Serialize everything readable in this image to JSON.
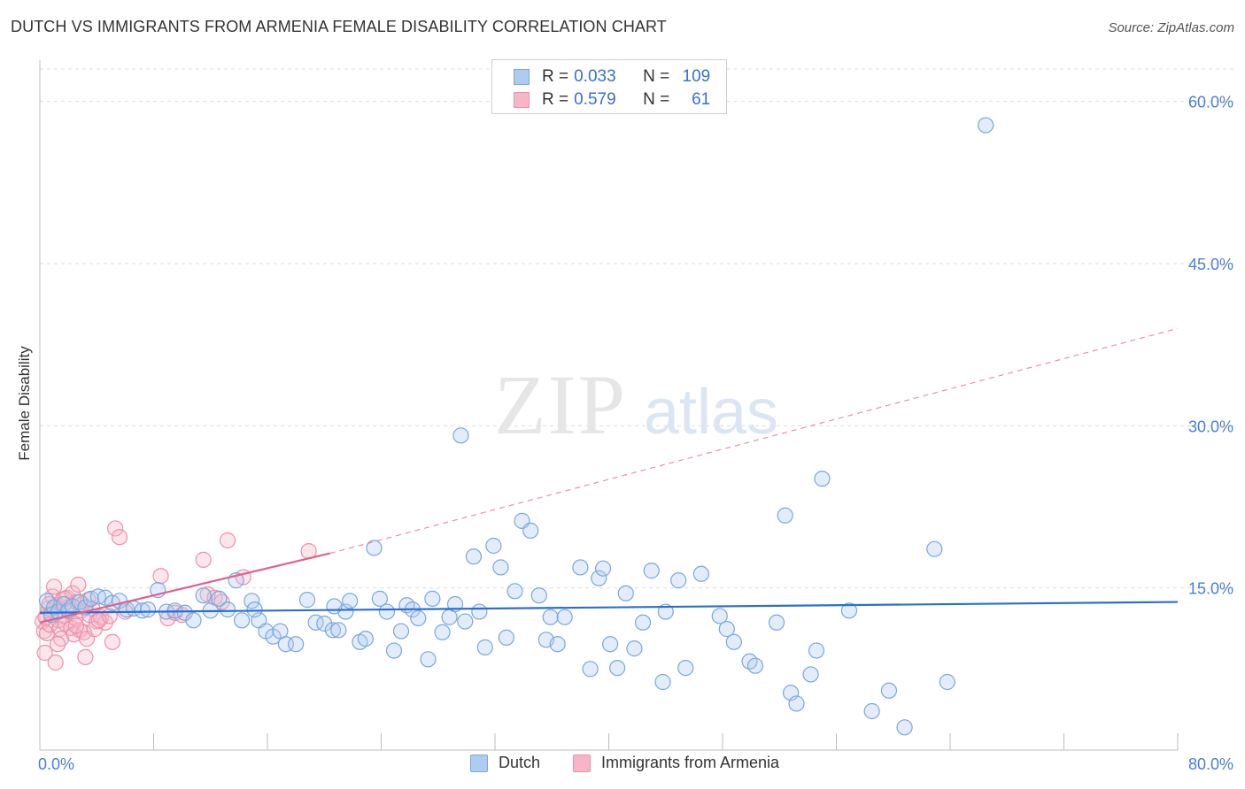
{
  "title": "DUTCH VS IMMIGRANTS FROM ARMENIA FEMALE DISABILITY CORRELATION CHART",
  "source": "Source: ZipAtlas.com",
  "watermark": {
    "zip": "ZIP",
    "atlas": "atlas"
  },
  "colors": {
    "dutch_fill": "#aecbf0",
    "dutch_stroke": "#7aa6dd",
    "dutch_line": "#2a6fd0",
    "armenia_fill": "#f7b6c8",
    "armenia_stroke": "#ec8fab",
    "armenia_line": "#e0608c",
    "axis_text": "#4a7fd4",
    "grid": "#dddddd"
  },
  "legend": {
    "rows": [
      {
        "r_label": "R = ",
        "r_value": "0.033",
        "n_label": "N = ",
        "n_value": "109"
      },
      {
        "r_label": "R = ",
        "r_value": "0.579",
        "n_label": "N = ",
        "n_value": "61"
      }
    ]
  },
  "chart_data": {
    "type": "scatter",
    "title": "DUTCH VS IMMIGRANTS FROM ARMENIA FEMALE DISABILITY CORRELATION CHART",
    "xlabel": "",
    "ylabel": "Female Disability",
    "xlim": [
      0,
      80
    ],
    "ylim": [
      0,
      63
    ],
    "x_tick_labels": [
      "0.0%",
      "80.0%"
    ],
    "y_ticks": [
      15,
      30,
      45,
      60
    ],
    "y_tick_labels": [
      "15.0%",
      "30.0%",
      "45.0%",
      "60.0%"
    ],
    "grid": true,
    "legend_position": "top-center",
    "series": [
      {
        "name": "Dutch",
        "r": 0.033,
        "n": 109,
        "trend": {
          "x0": 0,
          "y0": 12.7,
          "x1": 80,
          "y1": 13.7
        },
        "points": [
          [
            0.5,
            13.8
          ],
          [
            0.8,
            12.5
          ],
          [
            1.0,
            13.2
          ],
          [
            1.3,
            12.8
          ],
          [
            1.7,
            13.5
          ],
          [
            2.0,
            12.9
          ],
          [
            2.3,
            13.3
          ],
          [
            2.8,
            13.7
          ],
          [
            3.2,
            13.2
          ],
          [
            3.6,
            14.0
          ],
          [
            4.1,
            14.2
          ],
          [
            4.6,
            14.1
          ],
          [
            5.1,
            13.6
          ],
          [
            5.6,
            13.8
          ],
          [
            6.1,
            13.0
          ],
          [
            6.6,
            13.1
          ],
          [
            7.2,
            12.9
          ],
          [
            7.6,
            13.0
          ],
          [
            8.3,
            14.8
          ],
          [
            8.9,
            12.8
          ],
          [
            9.5,
            12.9
          ],
          [
            10.2,
            12.7
          ],
          [
            10.8,
            12.0
          ],
          [
            11.5,
            14.3
          ],
          [
            12.0,
            12.9
          ],
          [
            12.6,
            14.0
          ],
          [
            13.2,
            13.0
          ],
          [
            13.8,
            15.7
          ],
          [
            14.2,
            12.0
          ],
          [
            14.9,
            13.8
          ],
          [
            15.4,
            12.0
          ],
          [
            15.9,
            11.0
          ],
          [
            16.4,
            10.5
          ],
          [
            16.9,
            11.0
          ],
          [
            17.3,
            9.8
          ],
          [
            18.0,
            9.8
          ],
          [
            18.8,
            13.9
          ],
          [
            19.4,
            11.8
          ],
          [
            20.0,
            11.7
          ],
          [
            20.6,
            11.1
          ],
          [
            21.0,
            11.1
          ],
          [
            21.5,
            12.8
          ],
          [
            21.8,
            13.8
          ],
          [
            22.5,
            10.0
          ],
          [
            22.9,
            10.3
          ],
          [
            23.5,
            18.7
          ],
          [
            23.9,
            14.0
          ],
          [
            24.4,
            12.8
          ],
          [
            24.9,
            9.2
          ],
          [
            25.4,
            11.0
          ],
          [
            25.8,
            13.4
          ],
          [
            26.2,
            13.0
          ],
          [
            26.6,
            12.2
          ],
          [
            27.3,
            8.4
          ],
          [
            27.6,
            14.0
          ],
          [
            28.3,
            10.9
          ],
          [
            28.8,
            12.3
          ],
          [
            29.2,
            13.5
          ],
          [
            29.9,
            11.9
          ],
          [
            30.5,
            17.9
          ],
          [
            30.9,
            12.8
          ],
          [
            31.3,
            9.5
          ],
          [
            31.9,
            18.9
          ],
          [
            32.4,
            16.9
          ],
          [
            32.8,
            10.4
          ],
          [
            33.4,
            14.7
          ],
          [
            33.9,
            21.2
          ],
          [
            34.5,
            20.3
          ],
          [
            35.1,
            14.3
          ],
          [
            35.6,
            10.2
          ],
          [
            35.9,
            12.3
          ],
          [
            36.4,
            9.8
          ],
          [
            36.9,
            12.3
          ],
          [
            38.0,
            16.9
          ],
          [
            38.7,
            7.5
          ],
          [
            39.3,
            15.9
          ],
          [
            39.6,
            16.8
          ],
          [
            40.1,
            9.8
          ],
          [
            40.6,
            7.6
          ],
          [
            41.2,
            14.5
          ],
          [
            41.8,
            9.4
          ],
          [
            42.4,
            11.8
          ],
          [
            43.0,
            16.6
          ],
          [
            43.8,
            6.3
          ],
          [
            44.0,
            12.8
          ],
          [
            44.9,
            15.7
          ],
          [
            45.4,
            7.6
          ],
          [
            46.5,
            16.3
          ],
          [
            47.8,
            12.4
          ],
          [
            48.3,
            11.2
          ],
          [
            48.8,
            10.0
          ],
          [
            49.9,
            8.2
          ],
          [
            50.3,
            7.8
          ],
          [
            51.8,
            11.8
          ],
          [
            52.4,
            21.7
          ],
          [
            52.8,
            5.3
          ],
          [
            53.2,
            4.3
          ],
          [
            54.2,
            7.0
          ],
          [
            54.6,
            9.2
          ],
          [
            55.0,
            25.1
          ],
          [
            56.9,
            12.9
          ],
          [
            58.5,
            3.6
          ],
          [
            59.7,
            5.5
          ],
          [
            60.8,
            2.1
          ],
          [
            62.9,
            18.6
          ],
          [
            63.8,
            6.3
          ],
          [
            66.5,
            57.8
          ],
          [
            29.6,
            29.1
          ],
          [
            15.1,
            13.0
          ],
          [
            20.7,
            13.3
          ]
        ]
      },
      {
        "name": "Immigrants from Armenia",
        "r": 0.579,
        "n": 61,
        "trend": {
          "x0": 0,
          "y0": 11.8,
          "x1": 20.4,
          "y1": 18.2
        },
        "trend_extended": {
          "x0": 20.4,
          "y0": 18.2,
          "x1": 80,
          "y1": 39.0
        },
        "points": [
          [
            0.2,
            11.9
          ],
          [
            0.3,
            11.0
          ],
          [
            0.4,
            12.3
          ],
          [
            0.5,
            10.8
          ],
          [
            0.6,
            13.1
          ],
          [
            0.7,
            11.6
          ],
          [
            0.8,
            12.6
          ],
          [
            0.9,
            14.2
          ],
          [
            1.0,
            15.1
          ],
          [
            1.1,
            8.1
          ],
          [
            1.2,
            13.4
          ],
          [
            1.3,
            12.0
          ],
          [
            1.4,
            11.2
          ],
          [
            1.5,
            10.3
          ],
          [
            1.6,
            13.9
          ],
          [
            1.7,
            12.4
          ],
          [
            1.8,
            11.7
          ],
          [
            1.9,
            14.1
          ],
          [
            2.0,
            13.2
          ],
          [
            2.1,
            12.8
          ],
          [
            2.2,
            11.3
          ],
          [
            2.3,
            14.5
          ],
          [
            2.4,
            10.7
          ],
          [
            2.5,
            12.2
          ],
          [
            2.6,
            13.7
          ],
          [
            2.7,
            15.3
          ],
          [
            2.8,
            11.1
          ],
          [
            2.9,
            12.9
          ],
          [
            3.0,
            13.5
          ],
          [
            3.1,
            10.9
          ],
          [
            3.2,
            8.6
          ],
          [
            3.3,
            10.3
          ],
          [
            3.4,
            13.9
          ],
          [
            3.5,
            12.5
          ],
          [
            3.7,
            13.1
          ],
          [
            4.0,
            11.9
          ],
          [
            4.3,
            12.3
          ],
          [
            4.6,
            11.8
          ],
          [
            4.9,
            12.4
          ],
          [
            5.1,
            10.0
          ],
          [
            5.3,
            20.5
          ],
          [
            5.6,
            19.7
          ],
          [
            6.0,
            12.8
          ],
          [
            8.5,
            16.1
          ],
          [
            9.0,
            12.2
          ],
          [
            9.5,
            12.7
          ],
          [
            10.0,
            12.5
          ],
          [
            11.5,
            17.6
          ],
          [
            11.8,
            14.4
          ],
          [
            12.3,
            14.1
          ],
          [
            12.8,
            13.7
          ],
          [
            13.2,
            19.4
          ],
          [
            14.3,
            16.0
          ],
          [
            18.9,
            18.4
          ],
          [
            0.35,
            9.0
          ],
          [
            0.65,
            13.5
          ],
          [
            1.25,
            9.8
          ],
          [
            1.75,
            14.0
          ],
          [
            2.55,
            11.5
          ],
          [
            3.85,
            11.2
          ],
          [
            4.15,
            12.0
          ]
        ]
      }
    ]
  },
  "bottom_legend": [
    {
      "label": "Dutch"
    },
    {
      "label": "Immigrants from Armenia"
    }
  ]
}
